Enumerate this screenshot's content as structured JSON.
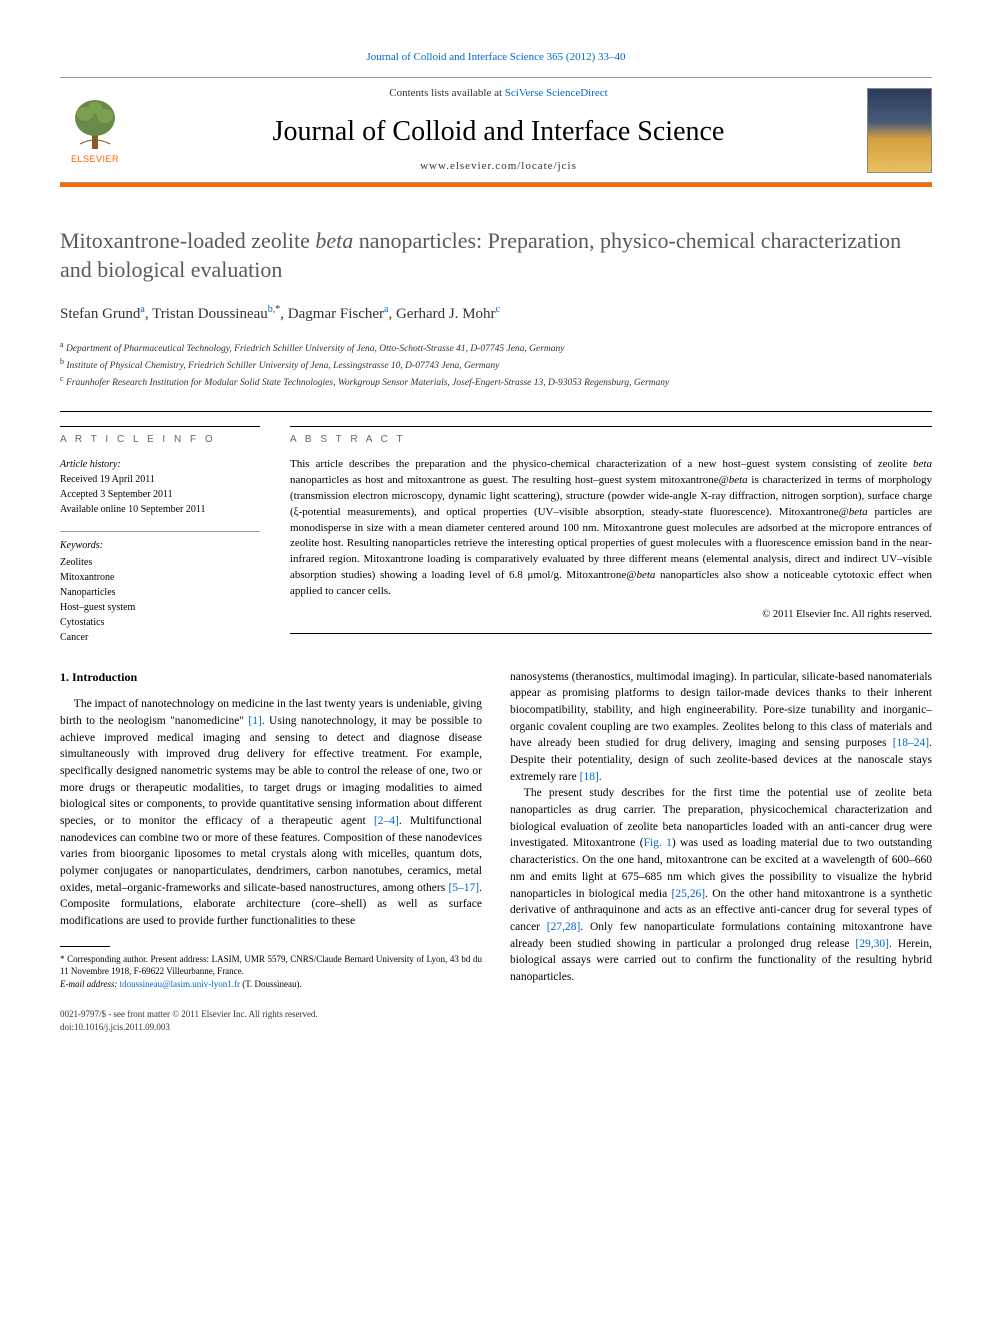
{
  "top_link": "Journal of Colloid and Interface Science 365 (2012) 33–40",
  "header": {
    "contents_prefix": "Contents lists available at ",
    "contents_link": "SciVerse ScienceDirect",
    "journal_name": "Journal of Colloid and Interface Science",
    "journal_url": "www.elsevier.com/locate/jcis",
    "publisher_label": "ELSEVIER"
  },
  "colors": {
    "accent_orange": "#ff6600",
    "link_blue": "#0066cc",
    "title_gray": "#5a5a5a"
  },
  "title_parts": {
    "pre": "Mitoxantrone-loaded zeolite ",
    "italic": "beta",
    "post": " nanoparticles: Preparation, physico-chemical characterization and biological evaluation"
  },
  "authors_html": "Stefan Grund<sup>a</sup>, Tristan Doussineau<sup>b,</sup><sup class='sup-star'>*</sup>, Dagmar Fischer<sup>a</sup>, Gerhard J. Mohr<sup>c</sup>",
  "affiliations": [
    "a Department of Pharmaceutical Technology, Friedrich Schiller University of Jena, Otto-Schott-Strasse 41, D-07745 Jena, Germany",
    "b Institute of Physical Chemistry, Friedrich Schiller University of Jena, Lessingstrasse 10, D-07743 Jena, Germany",
    "c Fraunhofer Research Institution for Modular Solid State Technologies, Workgroup Sensor Materials, Josef-Engert-Strasse 13, D-93053 Regensburg, Germany"
  ],
  "article_info_heading": "A R T I C L E   I N F O",
  "abstract_heading": "A B S T R A C T",
  "history": {
    "label": "Article history:",
    "received": "Received 19 April 2011",
    "accepted": "Accepted 3 September 2011",
    "online": "Available online 10 September 2011"
  },
  "keywords": {
    "label": "Keywords:",
    "items": [
      "Zeolites",
      "Mitoxantrone",
      "Nanoparticles",
      "Host–guest system",
      "Cytostatics",
      "Cancer"
    ]
  },
  "abstract_text": "This article describes the preparation and the physico-chemical characterization of a new host–guest system consisting of zeolite beta nanoparticles as host and mitoxantrone as guest. The resulting host–guest system mitoxantrone@beta is characterized in terms of morphology (transmission electron microscopy, dynamic light scattering), structure (powder wide-angle X-ray diffraction, nitrogen sorption), surface charge (ξ-potential measurements), and optical properties (UV–visible absorption, steady-state fluorescence). Mitoxantrone@beta particles are monodisperse in size with a mean diameter centered around 100 nm. Mitoxantrone guest molecules are adsorbed at the micropore entrances of zeolite host. Resulting nanoparticles retrieve the interesting optical properties of guest molecules with a fluorescence emission band in the near-infrared region. Mitoxantrone loading is comparatively evaluated by three different means (elemental analysis, direct and indirect UV–visible absorption studies) showing a loading level of 6.8 μmol/g. Mitoxantrone@beta nanoparticles also show a noticeable cytotoxic effect when applied to cancer cells.",
  "copyright": "© 2011 Elsevier Inc. All rights reserved.",
  "intro_heading": "1. Introduction",
  "body_left_p1": "The impact of nanotechnology on medicine in the last twenty years is undeniable, giving birth to the neologism \"nanomedicine\" [1]. Using nanotechnology, it may be possible to achieve improved medical imaging and sensing to detect and diagnose disease simultaneously with improved drug delivery for effective treatment. For example, specifically designed nanometric systems may be able to control the release of one, two or more drugs or therapeutic modalities, to target drugs or imaging modalities to aimed biological sites or components, to provide quantitative sensing information about different species, or to monitor the efficacy of a therapeutic agent [2–4]. Multifunctional nanodevices can combine two or more of these features. Composition of these nanodevices varies from bioorganic liposomes to metal crystals along with micelles, quantum dots, polymer conjugates or nanoparticulates, dendrimers, carbon nanotubes, ceramics, metal oxides, metal–organic-frameworks and silicate-based nanostructures, among others [5–17]. Composite formulations, elaborate architecture (core–shell) as well as surface modifications are used to provide further functionalities to these",
  "body_right_p1": "nanosystems (theranostics, multimodal imaging). In particular, silicate-based nanomaterials appear as promising platforms to design tailor-made devices thanks to their inherent biocompatibility, stability, and high engineerability. Pore-size tunability and inorganic–organic covalent coupling are two examples. Zeolites belong to this class of materials and have already been studied for drug delivery, imaging and sensing purposes [18–24]. Despite their potentiality, design of such zeolite-based devices at the nanoscale stays extremely rare [18].",
  "body_right_p2": "The present study describes for the first time the potential use of zeolite beta nanoparticles as drug carrier. The preparation, physicochemical characterization and biological evaluation of zeolite beta nanoparticles loaded with an anti-cancer drug were investigated. Mitoxantrone (Fig. 1) was used as loading material due to two outstanding characteristics. On the one hand, mitoxantrone can be excited at a wavelength of 600–660 nm and emits light at 675–685 nm which gives the possibility to visualize the hybrid nanoparticles in biological media [25,26]. On the other hand mitoxantrone is a synthetic derivative of anthraquinone and acts as an effective anti-cancer drug for several types of cancer [27,28]. Only few nanoparticulate formulations containing mitoxantrone have already been studied showing in particular a prolonged drug release [29,30]. Herein, biological assays were carried out to confirm the functionality of the resulting hybrid nanoparticles.",
  "footnote_corr": "* Corresponding author. Present address: LASIM, UMR 5579, CNRS/Claude Bernard University of Lyon, 43 bd du 11 Novembre 1918, F-69622 Villeurbanne, France.",
  "footnote_email_label": "E-mail address: ",
  "footnote_email": "tdoussineau@lasim.univ-lyon1.fr",
  "footnote_email_suffix": " (T. Doussineau).",
  "footer_line1": "0021-9797/$ - see front matter © 2011 Elsevier Inc. All rights reserved.",
  "footer_line2": "doi:10.1016/j.jcis.2011.09.003",
  "refs": {
    "r1": "[1]",
    "r2_4": "[2–4]",
    "r5_17": "[5–17]",
    "r18_24": "[18–24]",
    "r18": "[18]",
    "fig1": "Fig. 1",
    "r25_26": "[25,26]",
    "r27_28": "[27,28]",
    "r29_30": "[29,30]"
  }
}
